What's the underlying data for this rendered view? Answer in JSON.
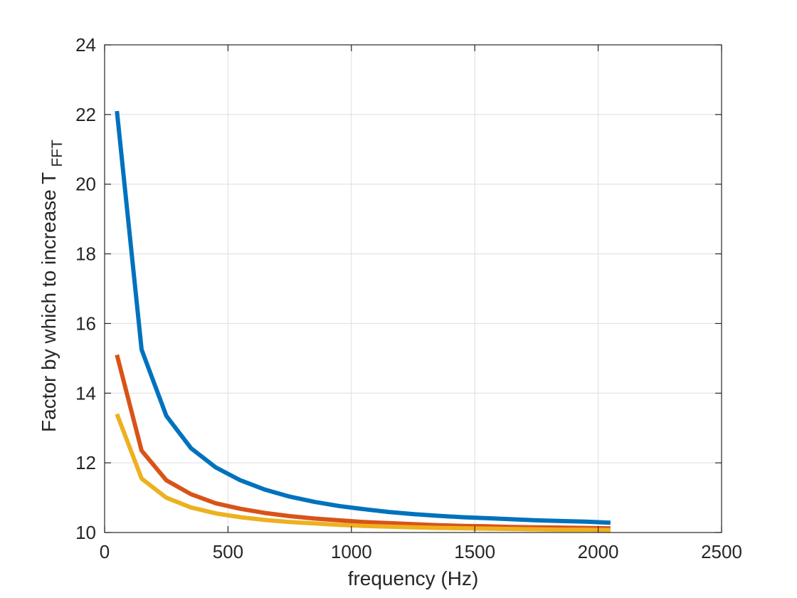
{
  "chart_data": {
    "type": "line",
    "xlabel": "frequency (Hz)",
    "ylabel": {
      "main": "Factor by which to increase T",
      "subscript": "FFT"
    },
    "xlim": [
      0,
      2500
    ],
    "ylim": [
      10,
      24
    ],
    "xticks": [
      0,
      500,
      1000,
      1500,
      2000,
      2500
    ],
    "yticks": [
      10,
      12,
      14,
      16,
      18,
      20,
      22,
      24
    ],
    "grid": true,
    "x": [
      50,
      150,
      250,
      350,
      450,
      550,
      650,
      750,
      850,
      950,
      1050,
      1150,
      1250,
      1350,
      1450,
      1550,
      1650,
      1750,
      1850,
      1950,
      2050
    ],
    "series": [
      {
        "color": "#0072BD",
        "values": [
          22.1,
          15.25,
          13.35,
          12.42,
          11.87,
          11.5,
          11.23,
          11.03,
          10.88,
          10.76,
          10.67,
          10.59,
          10.53,
          10.48,
          10.44,
          10.41,
          10.38,
          10.35,
          10.33,
          10.31,
          10.28
        ]
      },
      {
        "color": "#D95319",
        "values": [
          15.1,
          12.35,
          11.5,
          11.1,
          10.84,
          10.68,
          10.56,
          10.47,
          10.4,
          10.35,
          10.3,
          10.27,
          10.24,
          10.21,
          10.19,
          10.18,
          10.16,
          10.15,
          10.14,
          10.13,
          10.12
        ]
      },
      {
        "color": "#EDB120",
        "values": [
          13.4,
          11.55,
          11.0,
          10.72,
          10.55,
          10.44,
          10.36,
          10.3,
          10.26,
          10.22,
          10.19,
          10.17,
          10.15,
          10.13,
          10.12,
          10.11,
          10.1,
          10.09,
          10.08,
          10.08,
          10.07
        ]
      }
    ]
  }
}
